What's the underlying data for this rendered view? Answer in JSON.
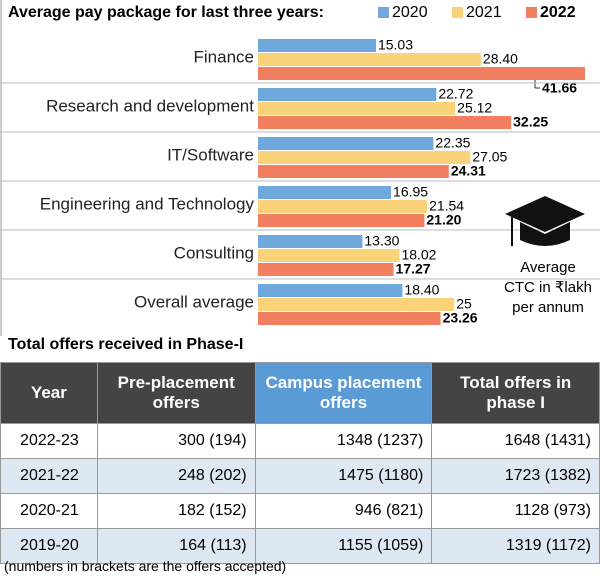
{
  "chart_data": {
    "type": "bar",
    "orientation": "horizontal",
    "title": "Average pay package for last three years:",
    "categories": [
      "Finance",
      "Research and development",
      "IT/Software",
      "Engineering and Technology",
      "Consulting",
      "Overall average"
    ],
    "series": [
      {
        "name": "2020",
        "color": "#6fa8dc",
        "values": [
          15.03,
          22.72,
          22.35,
          16.95,
          13.3,
          18.4
        ],
        "value_labels": [
          "15.03",
          "22.72",
          "22.35",
          "16.95",
          "13.30",
          "18.40"
        ]
      },
      {
        "name": "2021",
        "color": "#f9d27a",
        "values": [
          28.4,
          25.12,
          27.05,
          21.54,
          18.02,
          25
        ],
        "value_labels": [
          "28.40",
          "25.12",
          "27.05",
          "21.54",
          "18.02",
          "25"
        ]
      },
      {
        "name": "2022",
        "color": "#f27f5f",
        "values": [
          41.66,
          32.25,
          24.31,
          21.2,
          17.27,
          23.26
        ],
        "value_labels": [
          "41.66",
          "32.25",
          "24.31",
          "21.20",
          "17.27",
          "23.26"
        ]
      }
    ],
    "annotation": [
      "Average",
      "CTC in ₹lakh",
      "per annum"
    ]
  },
  "table": {
    "title": "Total offers received in Phase-I",
    "header": [
      "Year",
      "Pre-placement offers",
      "Campus placement offers",
      "Total offers in phase I"
    ],
    "rows": [
      [
        "2022-23",
        "300 (194)",
        "1348 (1237)",
        "1648 (1431)"
      ],
      [
        "2021-22",
        "248 (202)",
        "1475 (1180)",
        "1723 (1382)"
      ],
      [
        "2020-21",
        "182 (152)",
        "946 (821)",
        "1128 (973)"
      ],
      [
        "2019-20",
        "164 (113)",
        "1155 (1059)",
        "1319 (1172)"
      ]
    ],
    "footnote": "(numbers in brackets are the offers accepted)"
  }
}
